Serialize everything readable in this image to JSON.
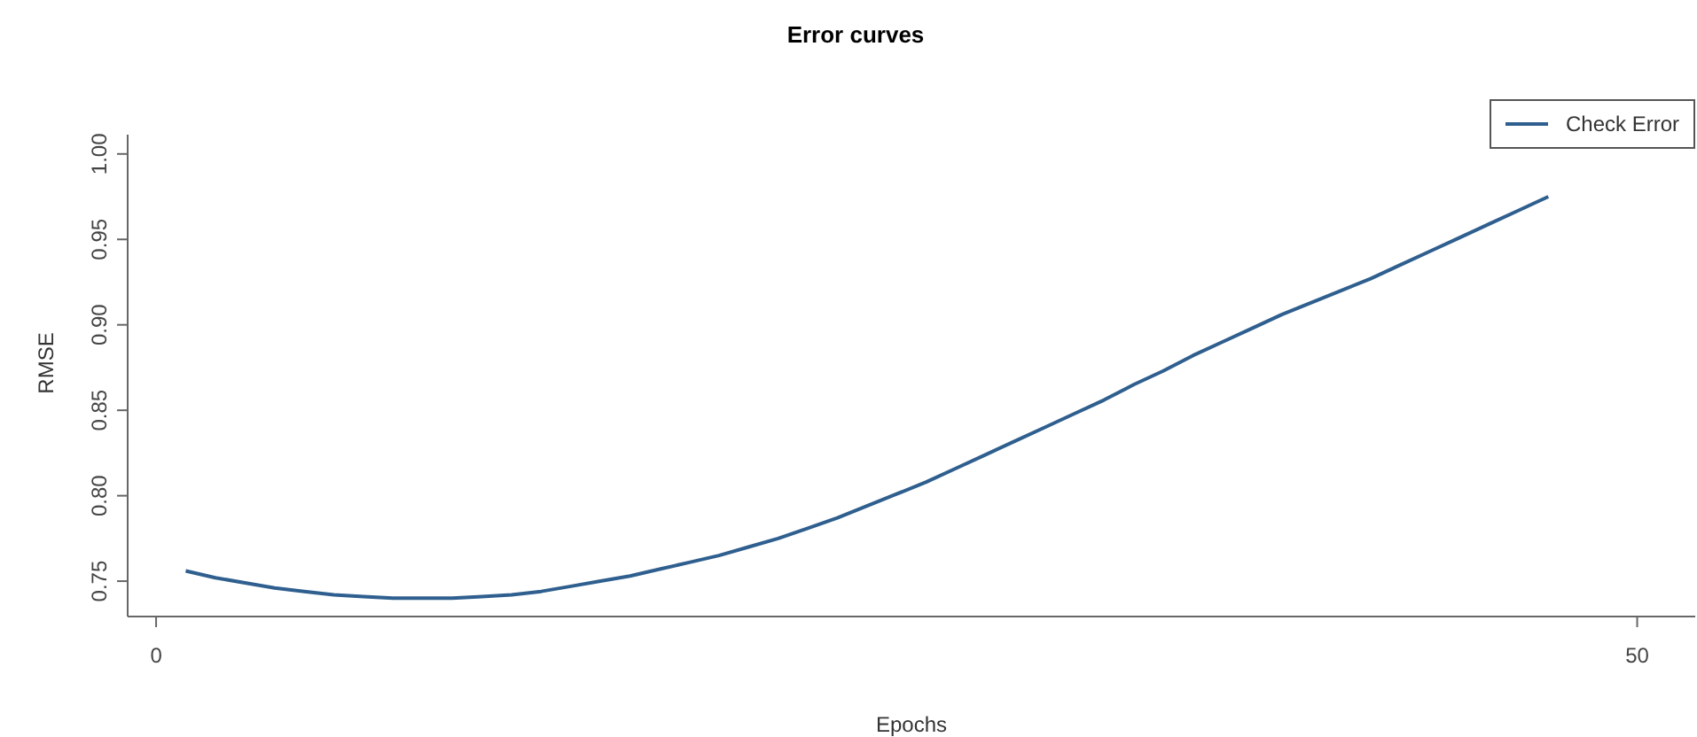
{
  "chart_data": {
    "type": "line",
    "title": "Error curves",
    "xlabel": "Epochs",
    "ylabel": "RMSE",
    "x": [
      1,
      2,
      3,
      4,
      5,
      6,
      7,
      8,
      9,
      10,
      11,
      12,
      13,
      14,
      15,
      16,
      17,
      18,
      19,
      20,
      21,
      22,
      23,
      24,
      25,
      26,
      27,
      28,
      29,
      30,
      31,
      32,
      33,
      34,
      35,
      36,
      37,
      38,
      39,
      40,
      41,
      42,
      43,
      44,
      45,
      46,
      47
    ],
    "series": [
      {
        "name": "Check Error",
        "color": "#2f5f8f",
        "values": [
          0.756,
          0.752,
          0.749,
          0.746,
          0.744,
          0.742,
          0.741,
          0.74,
          0.74,
          0.74,
          0.741,
          0.742,
          0.744,
          0.747,
          0.75,
          0.753,
          0.757,
          0.761,
          0.765,
          0.77,
          0.775,
          0.781,
          0.787,
          0.794,
          0.801,
          0.808,
          0.816,
          0.824,
          0.832,
          0.84,
          0.848,
          0.856,
          0.865,
          0.873,
          0.882,
          0.89,
          0.898,
          0.906,
          0.913,
          0.92,
          0.927,
          0.935,
          0.943,
          0.951,
          0.959,
          0.967,
          0.975
        ]
      }
    ],
    "xlim": [
      -0.96,
      51.96
    ],
    "xticks": [
      0,
      50
    ],
    "ylim": [
      0.7293,
      1.0113
    ],
    "yticks": [
      {
        "value": 0.75,
        "label": "0.75"
      },
      {
        "value": 0.8,
        "label": "0.80"
      },
      {
        "value": 0.85,
        "label": "0.85"
      },
      {
        "value": 0.9,
        "label": "0.90"
      },
      {
        "value": 0.95,
        "label": "0.95"
      },
      {
        "value": 1.0,
        "label": "1.00"
      }
    ],
    "legend": "top right",
    "grid": false,
    "marker": "none",
    "line_style": "solid"
  }
}
